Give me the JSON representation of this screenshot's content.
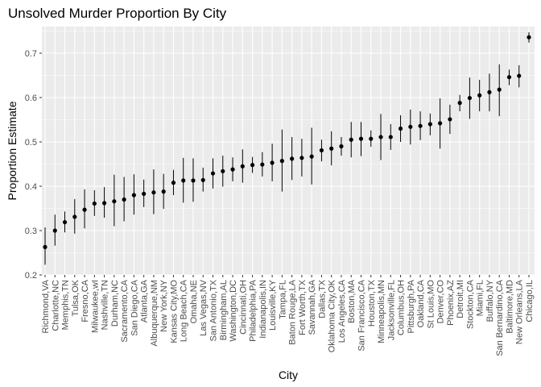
{
  "chart_data": {
    "type": "scatter",
    "title": "Unsolved Murder Proportion By City",
    "xlabel": "City",
    "ylabel": "Proportion Estimate",
    "ylim": [
      0.2,
      0.76
    ],
    "y_ticks": [
      0.2,
      0.3,
      0.4,
      0.5,
      0.6,
      0.7
    ],
    "grid": true,
    "legend": "none",
    "colors": {
      "panel": "#ebebeb",
      "grid": "#ffffff",
      "point": "#000000",
      "text": "#4d4d4d"
    },
    "points": [
      {
        "city": "Richmond,VA",
        "estimate": 0.263,
        "low": 0.223,
        "high": 0.307
      },
      {
        "city": "Charlotte,NC",
        "estimate": 0.3,
        "low": 0.266,
        "high": 0.336
      },
      {
        "city": "Memphis,TN",
        "estimate": 0.319,
        "low": 0.296,
        "high": 0.343
      },
      {
        "city": "Tulsa,OK",
        "estimate": 0.331,
        "low": 0.293,
        "high": 0.371
      },
      {
        "city": "Fresno,CA",
        "estimate": 0.347,
        "low": 0.305,
        "high": 0.393
      },
      {
        "city": "Milwaukee,wI",
        "estimate": 0.361,
        "low": 0.333,
        "high": 0.391
      },
      {
        "city": "Nashville,TN",
        "estimate": 0.362,
        "low": 0.329,
        "high": 0.398
      },
      {
        "city": "Durham,NC",
        "estimate": 0.366,
        "low": 0.31,
        "high": 0.426
      },
      {
        "city": "Sacramento,CA",
        "estimate": 0.37,
        "low": 0.321,
        "high": 0.421
      },
      {
        "city": "San Diego,CA",
        "estimate": 0.38,
        "low": 0.336,
        "high": 0.427
      },
      {
        "city": "Atlanta,GA",
        "estimate": 0.383,
        "low": 0.353,
        "high": 0.415
      },
      {
        "city": "Albuquerque,NM",
        "estimate": 0.386,
        "low": 0.337,
        "high": 0.438
      },
      {
        "city": "New York,NY",
        "estimate": 0.388,
        "low": 0.349,
        "high": 0.428
      },
      {
        "city": "Kansas City,MO",
        "estimate": 0.408,
        "low": 0.38,
        "high": 0.437
      },
      {
        "city": "Long Beach,CA",
        "estimate": 0.413,
        "low": 0.363,
        "high": 0.464
      },
      {
        "city": "Omaha,NE",
        "estimate": 0.413,
        "low": 0.365,
        "high": 0.463
      },
      {
        "city": "Las Vegas,NV",
        "estimate": 0.414,
        "low": 0.388,
        "high": 0.442
      },
      {
        "city": "San Antonio,TX",
        "estimate": 0.429,
        "low": 0.395,
        "high": 0.463
      },
      {
        "city": "Birmingham,AL",
        "estimate": 0.434,
        "low": 0.399,
        "high": 0.469
      },
      {
        "city": "Washington,DC",
        "estimate": 0.438,
        "low": 0.411,
        "high": 0.465
      },
      {
        "city": "Cincinnati,OH",
        "estimate": 0.445,
        "low": 0.408,
        "high": 0.483
      },
      {
        "city": "Philadelphia,PA",
        "estimate": 0.448,
        "low": 0.43,
        "high": 0.466
      },
      {
        "city": "Indianapolis,IN",
        "estimate": 0.449,
        "low": 0.422,
        "high": 0.477
      },
      {
        "city": "Louisville,KY",
        "estimate": 0.453,
        "low": 0.411,
        "high": 0.496
      },
      {
        "city": "Tampa,FL",
        "estimate": 0.457,
        "low": 0.388,
        "high": 0.528
      },
      {
        "city": "Baton Rouge,LA",
        "estimate": 0.462,
        "low": 0.414,
        "high": 0.511
      },
      {
        "city": "Fort Worth,TX",
        "estimate": 0.464,
        "low": 0.422,
        "high": 0.507
      },
      {
        "city": "Savannah,GA",
        "estimate": 0.467,
        "low": 0.404,
        "high": 0.532
      },
      {
        "city": "Dallas,TX",
        "estimate": 0.481,
        "low": 0.456,
        "high": 0.505
      },
      {
        "city": "Oklahoma City,OK",
        "estimate": 0.485,
        "low": 0.447,
        "high": 0.524
      },
      {
        "city": "Los Angeles,CA",
        "estimate": 0.49,
        "low": 0.469,
        "high": 0.511
      },
      {
        "city": "Boston,MA",
        "estimate": 0.505,
        "low": 0.465,
        "high": 0.545
      },
      {
        "city": "San Francisco,CA",
        "estimate": 0.507,
        "low": 0.468,
        "high": 0.545
      },
      {
        "city": "Houston,TX",
        "estimate": 0.507,
        "low": 0.489,
        "high": 0.526
      },
      {
        "city": "Minneapolis,MN",
        "estimate": 0.511,
        "low": 0.459,
        "high": 0.563
      },
      {
        "city": "Jacksonville,FL",
        "estimate": 0.511,
        "low": 0.482,
        "high": 0.54
      },
      {
        "city": "Columbus,OH",
        "estimate": 0.53,
        "low": 0.5,
        "high": 0.56
      },
      {
        "city": "Pittsburgh,PA",
        "estimate": 0.534,
        "low": 0.494,
        "high": 0.573
      },
      {
        "city": "Oakland,CA",
        "estimate": 0.536,
        "low": 0.504,
        "high": 0.569
      },
      {
        "city": "St Louis,MO",
        "estimate": 0.54,
        "low": 0.515,
        "high": 0.564
      },
      {
        "city": "Denver,CO",
        "estimate": 0.542,
        "low": 0.485,
        "high": 0.598
      },
      {
        "city": "Phoenix,AZ",
        "estimate": 0.551,
        "low": 0.518,
        "high": 0.584
      },
      {
        "city": "Detroit,MI",
        "estimate": 0.588,
        "low": 0.569,
        "high": 0.606
      },
      {
        "city": "Stockton,CA",
        "estimate": 0.599,
        "low": 0.552,
        "high": 0.645
      },
      {
        "city": "Miami,FL",
        "estimate": 0.605,
        "low": 0.569,
        "high": 0.64
      },
      {
        "city": "Buffalo,NY",
        "estimate": 0.612,
        "low": 0.569,
        "high": 0.654
      },
      {
        "city": "San Bernardino,CA",
        "estimate": 0.618,
        "low": 0.558,
        "high": 0.675
      },
      {
        "city": "Baltimore,MD",
        "estimate": 0.646,
        "low": 0.628,
        "high": 0.663
      },
      {
        "city": "New Orleans,LA",
        "estimate": 0.649,
        "low": 0.623,
        "high": 0.673
      },
      {
        "city": "Chicago,IL",
        "estimate": 0.736,
        "low": 0.724,
        "high": 0.747
      }
    ]
  }
}
